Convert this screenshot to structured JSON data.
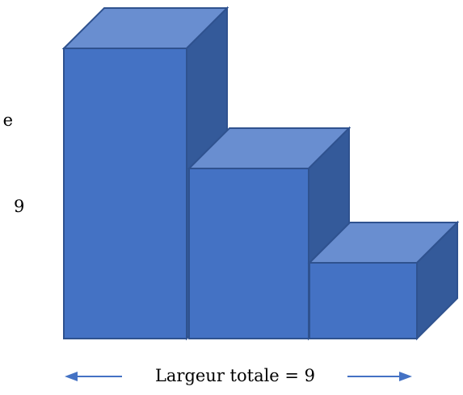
{
  "diagram": {
    "left_word_fragment": "e",
    "height_value": "9",
    "width_caption": "Largeur totale = 9",
    "blocks": [
      {
        "id": "tall",
        "relative_height": 9
      },
      {
        "id": "medium",
        "relative_height": 5.5
      },
      {
        "id": "short",
        "relative_height": 2.5
      }
    ],
    "colors": {
      "front": "#4472C4",
      "top": "#698ED0",
      "side": "#345A9A",
      "edge": "#2F528F",
      "arrow": "#4472C4",
      "text": "#000000"
    }
  }
}
